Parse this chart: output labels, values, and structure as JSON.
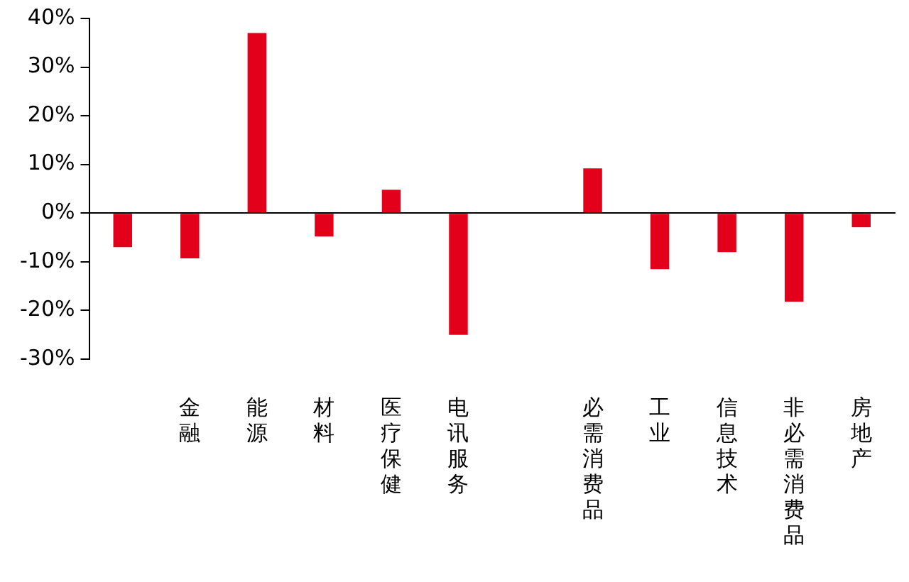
{
  "chart_data": {
    "type": "bar",
    "categories": [
      null,
      "金融",
      "能源",
      "材料",
      "医疗保健",
      "电讯服务",
      null,
      "必需消费品",
      "工业",
      "信息技术",
      "非必需消费品",
      "房地产"
    ],
    "values": [
      -7,
      -9.3,
      37,
      -4.8,
      4.8,
      -25,
      null,
      9.2,
      -11.5,
      -8,
      -18.2,
      -2.9
    ],
    "color": "#e2001a",
    "ylim": [
      -30,
      40
    ],
    "yticks": [
      {
        "value": -30,
        "label": "-30%"
      },
      {
        "value": -20,
        "label": "-20%"
      },
      {
        "value": -10,
        "label": "-10%"
      },
      {
        "value": 0,
        "label": "0%"
      },
      {
        "value": 10,
        "label": "10%"
      },
      {
        "value": 20,
        "label": "20%"
      },
      {
        "value": 30,
        "label": "30%"
      },
      {
        "value": 40,
        "label": "40%"
      }
    ]
  }
}
